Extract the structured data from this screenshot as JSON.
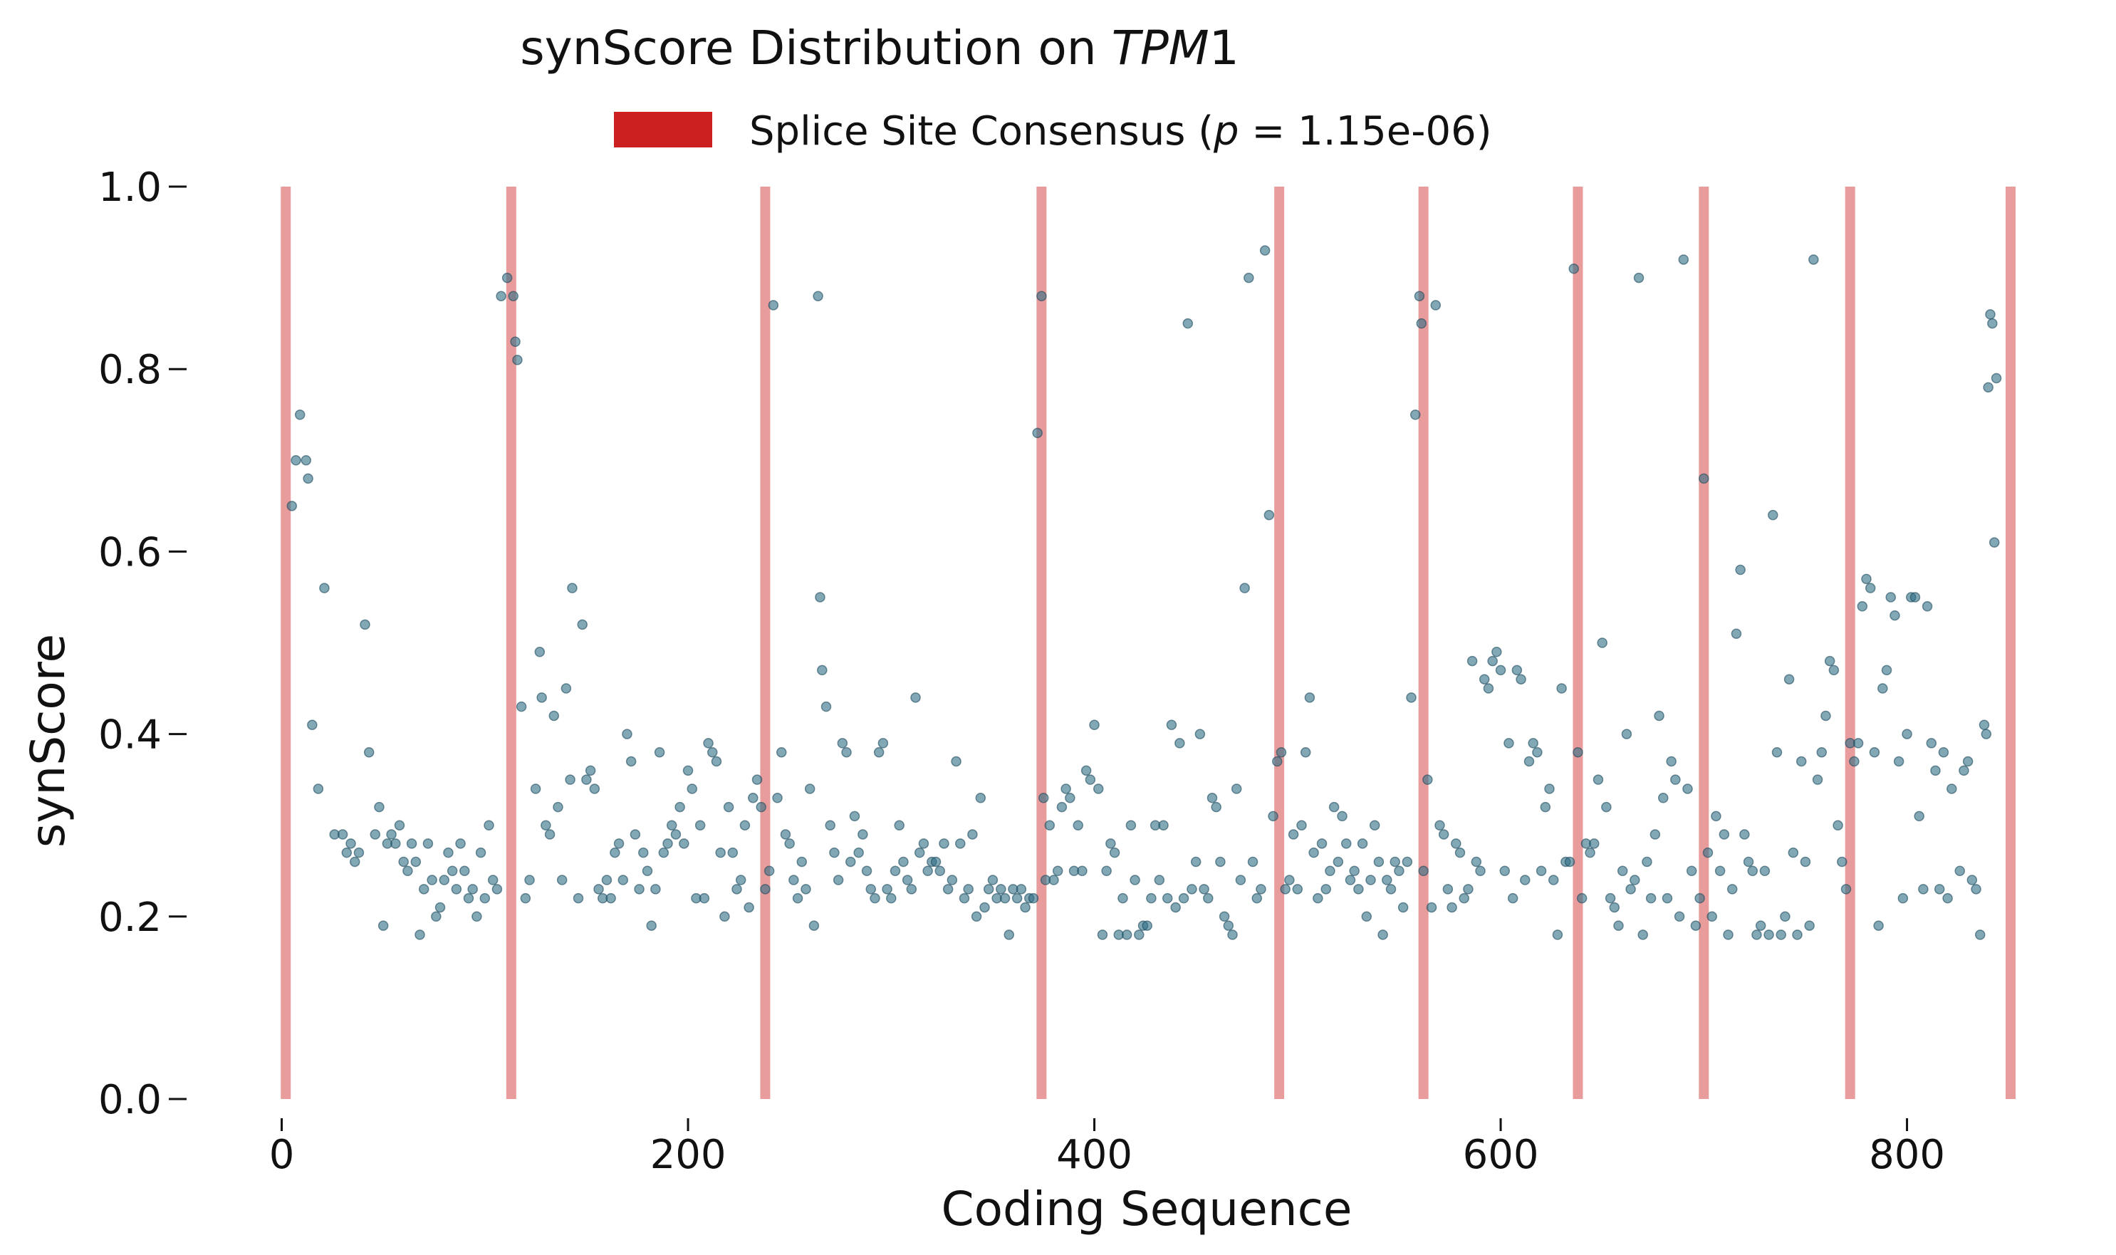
{
  "chart_data": {
    "type": "scatter",
    "title": {
      "prefix": "synScore Distribution on ",
      "gene_italic": "TPM",
      "gene_suffix": "1"
    },
    "xlabel": "Coding Sequence",
    "ylabel": "synScore",
    "xlim": [
      -10,
      858
    ],
    "ylim": [
      0,
      1.0
    ],
    "xticks": [
      0,
      200,
      400,
      600,
      800
    ],
    "yticks": [
      0.0,
      0.2,
      0.4,
      0.6,
      0.8,
      1.0
    ],
    "xtick_labels": [
      "0",
      "200",
      "400",
      "600",
      "800"
    ],
    "ytick_labels": [
      "0.0",
      "0.2",
      "0.4",
      "0.6",
      "0.8",
      "1.0"
    ],
    "grid": false,
    "legend": {
      "placement": "top-center",
      "entry": {
        "prefix": "Splice Site Consensus (",
        "italic": "p",
        "suffix": " = 1.15e-06)"
      }
    },
    "colors": {
      "points": "#2e6e85",
      "point_edge": "#1c4a5c",
      "splice_band": "#d64a4a",
      "legend_patch": "#cc1f1f",
      "text": "#111111"
    },
    "splice_sites": [
      2,
      113,
      238,
      374,
      491,
      562,
      638,
      700,
      772,
      851
    ],
    "points": [
      [
        5,
        0.65
      ],
      [
        7,
        0.7
      ],
      [
        9,
        0.75
      ],
      [
        12,
        0.7
      ],
      [
        13,
        0.68
      ],
      [
        15,
        0.41
      ],
      [
        18,
        0.34
      ],
      [
        21,
        0.56
      ],
      [
        26,
        0.29
      ],
      [
        30,
        0.29
      ],
      [
        32,
        0.27
      ],
      [
        34,
        0.28
      ],
      [
        36,
        0.26
      ],
      [
        38,
        0.27
      ],
      [
        41,
        0.52
      ],
      [
        43,
        0.38
      ],
      [
        46,
        0.29
      ],
      [
        48,
        0.32
      ],
      [
        50,
        0.19
      ],
      [
        52,
        0.28
      ],
      [
        54,
        0.29
      ],
      [
        56,
        0.28
      ],
      [
        58,
        0.3
      ],
      [
        60,
        0.26
      ],
      [
        62,
        0.25
      ],
      [
        64,
        0.28
      ],
      [
        66,
        0.26
      ],
      [
        68,
        0.18
      ],
      [
        70,
        0.23
      ],
      [
        72,
        0.28
      ],
      [
        74,
        0.24
      ],
      [
        76,
        0.2
      ],
      [
        78,
        0.21
      ],
      [
        80,
        0.24
      ],
      [
        82,
        0.27
      ],
      [
        84,
        0.25
      ],
      [
        86,
        0.23
      ],
      [
        88,
        0.28
      ],
      [
        90,
        0.25
      ],
      [
        92,
        0.22
      ],
      [
        94,
        0.23
      ],
      [
        96,
        0.2
      ],
      [
        98,
        0.27
      ],
      [
        100,
        0.22
      ],
      [
        102,
        0.3
      ],
      [
        104,
        0.24
      ],
      [
        106,
        0.23
      ],
      [
        108,
        0.88
      ],
      [
        111,
        0.9
      ],
      [
        114,
        0.88
      ],
      [
        115,
        0.83
      ],
      [
        116,
        0.81
      ],
      [
        118,
        0.43
      ],
      [
        120,
        0.22
      ],
      [
        122,
        0.24
      ],
      [
        125,
        0.34
      ],
      [
        127,
        0.49
      ],
      [
        128,
        0.44
      ],
      [
        130,
        0.3
      ],
      [
        132,
        0.29
      ],
      [
        134,
        0.42
      ],
      [
        136,
        0.32
      ],
      [
        138,
        0.24
      ],
      [
        140,
        0.45
      ],
      [
        142,
        0.35
      ],
      [
        143,
        0.56
      ],
      [
        146,
        0.22
      ],
      [
        148,
        0.52
      ],
      [
        150,
        0.35
      ],
      [
        152,
        0.36
      ],
      [
        154,
        0.34
      ],
      [
        156,
        0.23
      ],
      [
        158,
        0.22
      ],
      [
        160,
        0.24
      ],
      [
        162,
        0.22
      ],
      [
        164,
        0.27
      ],
      [
        166,
        0.28
      ],
      [
        168,
        0.24
      ],
      [
        170,
        0.4
      ],
      [
        172,
        0.37
      ],
      [
        174,
        0.29
      ],
      [
        176,
        0.23
      ],
      [
        178,
        0.27
      ],
      [
        180,
        0.25
      ],
      [
        182,
        0.19
      ],
      [
        184,
        0.23
      ],
      [
        186,
        0.38
      ],
      [
        188,
        0.27
      ],
      [
        190,
        0.28
      ],
      [
        192,
        0.3
      ],
      [
        194,
        0.29
      ],
      [
        196,
        0.32
      ],
      [
        198,
        0.28
      ],
      [
        200,
        0.36
      ],
      [
        202,
        0.34
      ],
      [
        204,
        0.22
      ],
      [
        206,
        0.3
      ],
      [
        208,
        0.22
      ],
      [
        210,
        0.39
      ],
      [
        212,
        0.38
      ],
      [
        214,
        0.37
      ],
      [
        216,
        0.27
      ],
      [
        218,
        0.2
      ],
      [
        220,
        0.32
      ],
      [
        222,
        0.27
      ],
      [
        224,
        0.23
      ],
      [
        226,
        0.24
      ],
      [
        228,
        0.3
      ],
      [
        230,
        0.21
      ],
      [
        232,
        0.33
      ],
      [
        234,
        0.35
      ],
      [
        236,
        0.32
      ],
      [
        238,
        0.23
      ],
      [
        240,
        0.25
      ],
      [
        242,
        0.87
      ],
      [
        244,
        0.33
      ],
      [
        246,
        0.38
      ],
      [
        248,
        0.29
      ],
      [
        250,
        0.28
      ],
      [
        252,
        0.24
      ],
      [
        254,
        0.22
      ],
      [
        256,
        0.26
      ],
      [
        258,
        0.23
      ],
      [
        260,
        0.34
      ],
      [
        262,
        0.19
      ],
      [
        264,
        0.88
      ],
      [
        265,
        0.55
      ],
      [
        266,
        0.47
      ],
      [
        268,
        0.43
      ],
      [
        270,
        0.3
      ],
      [
        272,
        0.27
      ],
      [
        274,
        0.24
      ],
      [
        276,
        0.39
      ],
      [
        278,
        0.38
      ],
      [
        280,
        0.26
      ],
      [
        282,
        0.31
      ],
      [
        284,
        0.27
      ],
      [
        286,
        0.29
      ],
      [
        288,
        0.25
      ],
      [
        290,
        0.23
      ],
      [
        292,
        0.22
      ],
      [
        294,
        0.38
      ],
      [
        296,
        0.39
      ],
      [
        298,
        0.23
      ],
      [
        300,
        0.22
      ],
      [
        302,
        0.25
      ],
      [
        304,
        0.3
      ],
      [
        306,
        0.26
      ],
      [
        308,
        0.24
      ],
      [
        310,
        0.23
      ],
      [
        312,
        0.44
      ],
      [
        314,
        0.27
      ],
      [
        316,
        0.28
      ],
      [
        318,
        0.25
      ],
      [
        320,
        0.26
      ],
      [
        322,
        0.26
      ],
      [
        324,
        0.25
      ],
      [
        326,
        0.28
      ],
      [
        328,
        0.23
      ],
      [
        330,
        0.24
      ],
      [
        332,
        0.37
      ],
      [
        334,
        0.28
      ],
      [
        336,
        0.22
      ],
      [
        338,
        0.23
      ],
      [
        340,
        0.29
      ],
      [
        342,
        0.2
      ],
      [
        344,
        0.33
      ],
      [
        346,
        0.21
      ],
      [
        348,
        0.23
      ],
      [
        350,
        0.24
      ],
      [
        352,
        0.22
      ],
      [
        354,
        0.23
      ],
      [
        356,
        0.22
      ],
      [
        358,
        0.18
      ],
      [
        360,
        0.23
      ],
      [
        362,
        0.22
      ],
      [
        364,
        0.23
      ],
      [
        366,
        0.21
      ],
      [
        368,
        0.22
      ],
      [
        370,
        0.22
      ],
      [
        372,
        0.73
      ],
      [
        374,
        0.88
      ],
      [
        375,
        0.33
      ],
      [
        376,
        0.24
      ],
      [
        378,
        0.3
      ],
      [
        380,
        0.24
      ],
      [
        382,
        0.25
      ],
      [
        384,
        0.32
      ],
      [
        386,
        0.34
      ],
      [
        388,
        0.33
      ],
      [
        390,
        0.25
      ],
      [
        392,
        0.3
      ],
      [
        394,
        0.25
      ],
      [
        396,
        0.36
      ],
      [
        398,
        0.35
      ],
      [
        400,
        0.41
      ],
      [
        402,
        0.34
      ],
      [
        404,
        0.18
      ],
      [
        406,
        0.25
      ],
      [
        408,
        0.28
      ],
      [
        410,
        0.27
      ],
      [
        412,
        0.18
      ],
      [
        414,
        0.22
      ],
      [
        416,
        0.18
      ],
      [
        418,
        0.3
      ],
      [
        420,
        0.24
      ],
      [
        422,
        0.18
      ],
      [
        424,
        0.19
      ],
      [
        426,
        0.19
      ],
      [
        428,
        0.22
      ],
      [
        430,
        0.3
      ],
      [
        432,
        0.24
      ],
      [
        434,
        0.3
      ],
      [
        436,
        0.22
      ],
      [
        438,
        0.41
      ],
      [
        440,
        0.21
      ],
      [
        442,
        0.39
      ],
      [
        444,
        0.22
      ],
      [
        446,
        0.85
      ],
      [
        448,
        0.23
      ],
      [
        450,
        0.26
      ],
      [
        452,
        0.4
      ],
      [
        454,
        0.23
      ],
      [
        456,
        0.22
      ],
      [
        458,
        0.33
      ],
      [
        460,
        0.32
      ],
      [
        462,
        0.26
      ],
      [
        464,
        0.2
      ],
      [
        466,
        0.19
      ],
      [
        468,
        0.18
      ],
      [
        470,
        0.34
      ],
      [
        472,
        0.24
      ],
      [
        474,
        0.56
      ],
      [
        476,
        0.9
      ],
      [
        478,
        0.26
      ],
      [
        480,
        0.22
      ],
      [
        482,
        0.23
      ],
      [
        484,
        0.93
      ],
      [
        486,
        0.64
      ],
      [
        488,
        0.31
      ],
      [
        490,
        0.37
      ],
      [
        492,
        0.38
      ],
      [
        494,
        0.23
      ],
      [
        496,
        0.24
      ],
      [
        498,
        0.29
      ],
      [
        500,
        0.23
      ],
      [
        502,
        0.3
      ],
      [
        504,
        0.38
      ],
      [
        506,
        0.44
      ],
      [
        508,
        0.27
      ],
      [
        510,
        0.22
      ],
      [
        512,
        0.28
      ],
      [
        514,
        0.23
      ],
      [
        516,
        0.25
      ],
      [
        518,
        0.32
      ],
      [
        520,
        0.26
      ],
      [
        522,
        0.31
      ],
      [
        524,
        0.28
      ],
      [
        526,
        0.24
      ],
      [
        528,
        0.25
      ],
      [
        530,
        0.23
      ],
      [
        532,
        0.28
      ],
      [
        534,
        0.2
      ],
      [
        536,
        0.24
      ],
      [
        538,
        0.3
      ],
      [
        540,
        0.26
      ],
      [
        542,
        0.18
      ],
      [
        544,
        0.24
      ],
      [
        546,
        0.23
      ],
      [
        548,
        0.26
      ],
      [
        550,
        0.25
      ],
      [
        552,
        0.21
      ],
      [
        554,
        0.26
      ],
      [
        556,
        0.44
      ],
      [
        558,
        0.75
      ],
      [
        560,
        0.88
      ],
      [
        561,
        0.85
      ],
      [
        562,
        0.25
      ],
      [
        564,
        0.35
      ],
      [
        566,
        0.21
      ],
      [
        568,
        0.87
      ],
      [
        570,
        0.3
      ],
      [
        572,
        0.29
      ],
      [
        574,
        0.23
      ],
      [
        576,
        0.21
      ],
      [
        578,
        0.28
      ],
      [
        580,
        0.27
      ],
      [
        582,
        0.22
      ],
      [
        584,
        0.23
      ],
      [
        586,
        0.48
      ],
      [
        588,
        0.26
      ],
      [
        590,
        0.25
      ],
      [
        592,
        0.46
      ],
      [
        594,
        0.45
      ],
      [
        596,
        0.48
      ],
      [
        598,
        0.49
      ],
      [
        600,
        0.47
      ],
      [
        602,
        0.25
      ],
      [
        604,
        0.39
      ],
      [
        606,
        0.22
      ],
      [
        608,
        0.47
      ],
      [
        610,
        0.46
      ],
      [
        612,
        0.24
      ],
      [
        614,
        0.37
      ],
      [
        616,
        0.39
      ],
      [
        618,
        0.38
      ],
      [
        620,
        0.25
      ],
      [
        622,
        0.32
      ],
      [
        624,
        0.34
      ],
      [
        626,
        0.24
      ],
      [
        628,
        0.18
      ],
      [
        630,
        0.45
      ],
      [
        632,
        0.26
      ],
      [
        634,
        0.26
      ],
      [
        636,
        0.91
      ],
      [
        638,
        0.38
      ],
      [
        640,
        0.22
      ],
      [
        642,
        0.28
      ],
      [
        644,
        0.27
      ],
      [
        646,
        0.28
      ],
      [
        648,
        0.35
      ],
      [
        650,
        0.5
      ],
      [
        652,
        0.32
      ],
      [
        654,
        0.22
      ],
      [
        656,
        0.21
      ],
      [
        658,
        0.19
      ],
      [
        660,
        0.25
      ],
      [
        662,
        0.4
      ],
      [
        664,
        0.23
      ],
      [
        666,
        0.24
      ],
      [
        668,
        0.9
      ],
      [
        670,
        0.18
      ],
      [
        672,
        0.26
      ],
      [
        674,
        0.22
      ],
      [
        676,
        0.29
      ],
      [
        678,
        0.42
      ],
      [
        680,
        0.33
      ],
      [
        682,
        0.22
      ],
      [
        684,
        0.37
      ],
      [
        686,
        0.35
      ],
      [
        688,
        0.2
      ],
      [
        690,
        0.92
      ],
      [
        692,
        0.34
      ],
      [
        694,
        0.25
      ],
      [
        696,
        0.19
      ],
      [
        698,
        0.22
      ],
      [
        700,
        0.68
      ],
      [
        702,
        0.27
      ],
      [
        704,
        0.2
      ],
      [
        706,
        0.31
      ],
      [
        708,
        0.25
      ],
      [
        710,
        0.29
      ],
      [
        712,
        0.18
      ],
      [
        714,
        0.23
      ],
      [
        716,
        0.51
      ],
      [
        718,
        0.58
      ],
      [
        720,
        0.29
      ],
      [
        722,
        0.26
      ],
      [
        724,
        0.25
      ],
      [
        726,
        0.18
      ],
      [
        728,
        0.19
      ],
      [
        730,
        0.25
      ],
      [
        732,
        0.18
      ],
      [
        734,
        0.64
      ],
      [
        736,
        0.38
      ],
      [
        738,
        0.18
      ],
      [
        740,
        0.2
      ],
      [
        742,
        0.46
      ],
      [
        744,
        0.27
      ],
      [
        746,
        0.18
      ],
      [
        748,
        0.37
      ],
      [
        750,
        0.26
      ],
      [
        752,
        0.19
      ],
      [
        754,
        0.92
      ],
      [
        756,
        0.35
      ],
      [
        758,
        0.38
      ],
      [
        760,
        0.42
      ],
      [
        762,
        0.48
      ],
      [
        764,
        0.47
      ],
      [
        766,
        0.3
      ],
      [
        768,
        0.26
      ],
      [
        770,
        0.23
      ],
      [
        772,
        0.39
      ],
      [
        774,
        0.37
      ],
      [
        776,
        0.39
      ],
      [
        778,
        0.54
      ],
      [
        780,
        0.57
      ],
      [
        782,
        0.56
      ],
      [
        784,
        0.38
      ],
      [
        786,
        0.19
      ],
      [
        788,
        0.45
      ],
      [
        790,
        0.47
      ],
      [
        792,
        0.55
      ],
      [
        794,
        0.53
      ],
      [
        796,
        0.37
      ],
      [
        798,
        0.22
      ],
      [
        800,
        0.4
      ],
      [
        802,
        0.55
      ],
      [
        804,
        0.55
      ],
      [
        806,
        0.31
      ],
      [
        808,
        0.23
      ],
      [
        810,
        0.54
      ],
      [
        812,
        0.39
      ],
      [
        814,
        0.36
      ],
      [
        816,
        0.23
      ],
      [
        818,
        0.38
      ],
      [
        820,
        0.22
      ],
      [
        822,
        0.34
      ],
      [
        826,
        0.25
      ],
      [
        828,
        0.36
      ],
      [
        830,
        0.37
      ],
      [
        832,
        0.24
      ],
      [
        834,
        0.23
      ],
      [
        836,
        0.18
      ],
      [
        838,
        0.41
      ],
      [
        839,
        0.4
      ],
      [
        840,
        0.78
      ],
      [
        841,
        0.86
      ],
      [
        842,
        0.85
      ],
      [
        843,
        0.61
      ],
      [
        844,
        0.79
      ]
    ]
  }
}
